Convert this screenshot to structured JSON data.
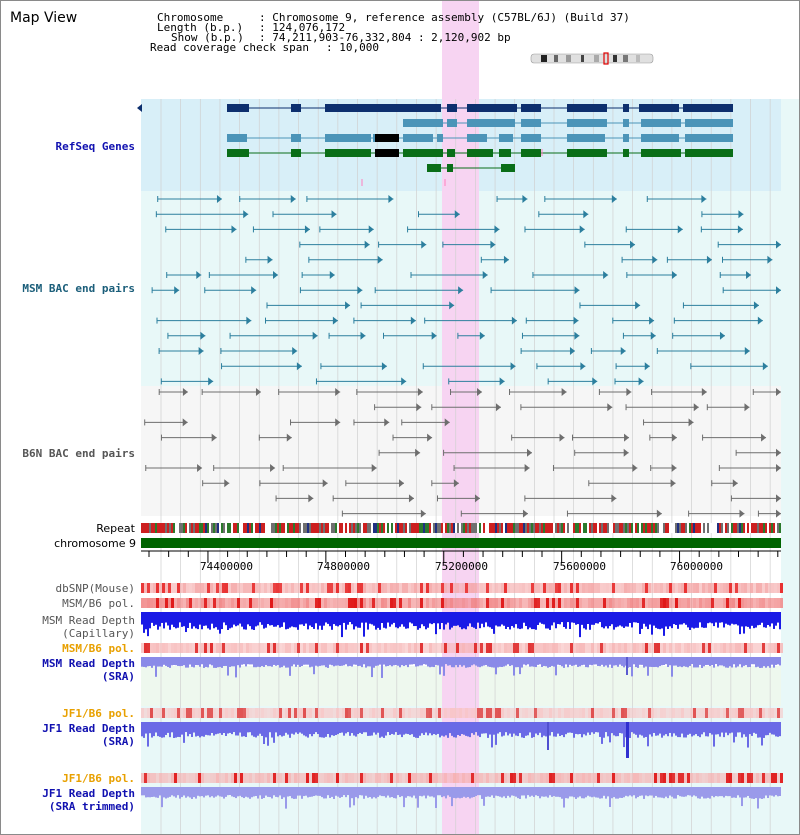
{
  "header": {
    "title": "Map View",
    "chromosome_key": "Chromosome",
    "chromosome_val": ": Chromosome 9, reference assembly (C57BL/6J) (Build 37)",
    "length_key": "Length (b.p.)",
    "length_val": ": 124,076,172",
    "show_key": "Show (b.p.)",
    "show_val": ": 74,211,903-76,332,804 : 2,120,902 bp",
    "coverage_key": "Read coverage check span",
    "coverage_val": ": 10,000"
  },
  "tracks": {
    "refseq": "RefSeq Genes",
    "msm_bac": "MSM BAC end pairs",
    "b6n_bac": "B6N BAC end pairs",
    "repeat": "Repeat",
    "chromosome": "chromosome 9",
    "dbsnp": "dbSNP(Mouse)",
    "msm_b6_pol_1": "MSM/B6 pol.",
    "msm_depth_cap_1": "MSM Read Depth",
    "msm_depth_cap_2": "(Capillary)",
    "msm_b6_pol_2": "MSM/B6 pol.",
    "msm_depth_sra_1": "MSM Read Depth",
    "msm_depth_sra_2": "(SRA)",
    "jf1_b6_pol_1": "JF1/B6 pol.",
    "jf1_depth_sra_1": "JF1 Read Depth",
    "jf1_depth_sra_2": "(SRA)",
    "jf1_b6_pol_2": "JF1/B6 pol.",
    "jf1_depth_trim_1": "JF1 Read Depth",
    "jf1_depth_trim_2": "(SRA trimmed)"
  },
  "axis_ticks": [
    "74400000",
    "74800000",
    "75200000",
    "75600000",
    "76000000"
  ],
  "colors": {
    "msm_label": "#1b5e7a",
    "blue_label": "#1010b0",
    "orange_label": "#e8a000",
    "gray_label": "#555555",
    "highlight": "#f7d4f2",
    "chromosome_bar": "#006400"
  }
}
